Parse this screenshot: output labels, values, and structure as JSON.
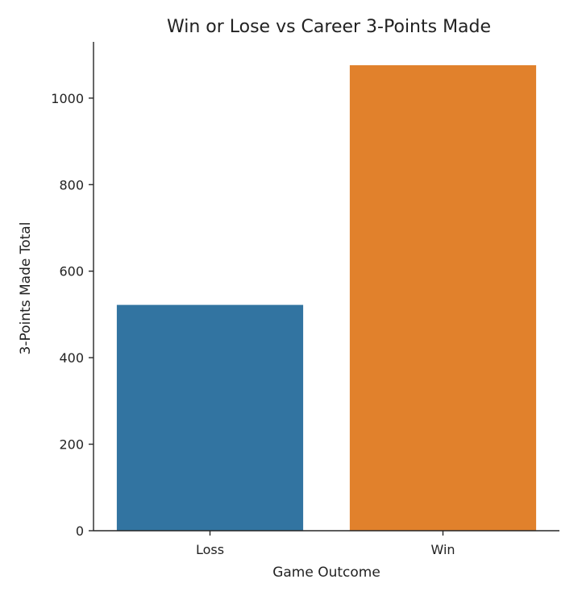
{
  "chart_data": {
    "type": "bar",
    "title": "Win or Lose vs Career 3-Points Made",
    "xlabel": "Game Outcome",
    "ylabel": "3-Points Made Total",
    "categories": [
      "Loss",
      "Win"
    ],
    "values": [
      522,
      1076
    ],
    "colors": [
      "#3274a1",
      "#e1812c"
    ],
    "ylim": [
      0,
      1130
    ],
    "yticks": [
      0,
      200,
      400,
      600,
      800,
      1000
    ],
    "ytick_labels": [
      "0",
      "200",
      "400",
      "600",
      "800",
      "1000"
    ],
    "grid": false,
    "legend": "none"
  }
}
